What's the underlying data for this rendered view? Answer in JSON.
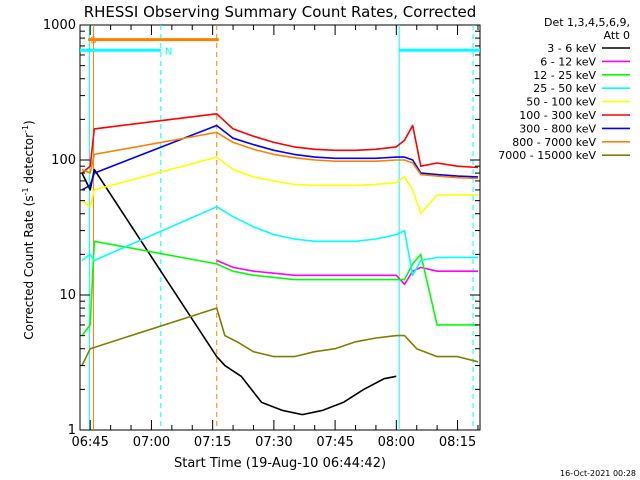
{
  "chart_data": {
    "type": "line",
    "title": "RHESSI Observing Summary Count Rates, Corrected",
    "xlabel": "Start Time (19-Aug-10 06:44:42)",
    "ylabel_main": "Corrected Count Rate (s",
    "ylabel_sup1": "-1",
    "ylabel_mid": " detector",
    "ylabel_sup2": "-1",
    "ylabel_end": ")",
    "yscale": "log",
    "ylim": [
      1,
      1000
    ],
    "xlim_minutes": [
      -2.5,
      95.5
    ],
    "x_tick_labels": [
      "06:45",
      "07:00",
      "07:15",
      "07:30",
      "07:45",
      "08:00",
      "08:15"
    ],
    "x_tick_minutes": [
      0,
      15,
      30,
      45,
      60,
      75,
      90
    ],
    "y_tick_labels": [
      "1",
      "10",
      "100",
      "1000"
    ],
    "y_tick_values": [
      1,
      10,
      100,
      1000
    ],
    "legend_position": "right",
    "legend_header": [
      "Det 1,3,4,5,6,9,",
      "Att 0"
    ],
    "series": [
      {
        "name": "3 - 6 keV",
        "color": "#000000",
        "x": [
          -2,
          0,
          1,
          31,
          33,
          37,
          42,
          47,
          52,
          57,
          62,
          67,
          72,
          75
        ],
        "y": [
          80,
          60,
          85,
          3.5,
          3.0,
          2.5,
          1.6,
          1.4,
          1.3,
          1.4,
          1.6,
          2.0,
          2.4,
          2.5
        ]
      },
      {
        "name": "6 - 12 keV",
        "color": "#ff00ff",
        "x": [
          31,
          35,
          40,
          45,
          50,
          55,
          60,
          65,
          70,
          75,
          77,
          79,
          81,
          85,
          90,
          95
        ],
        "y": [
          18,
          16,
          15,
          14.5,
          14,
          14,
          14,
          14,
          14,
          14,
          12,
          15,
          16,
          15,
          15,
          15
        ]
      },
      {
        "name": "12 - 25 keV",
        "color": "#00ff00",
        "x": [
          -2,
          0,
          1,
          31,
          35,
          40,
          45,
          50,
          55,
          60,
          65,
          70,
          75,
          77,
          79,
          81,
          85,
          90,
          95
        ],
        "y": [
          5,
          6,
          25,
          17,
          15,
          14,
          13.5,
          13,
          13,
          13,
          13,
          13,
          13,
          13,
          17,
          20,
          6,
          6,
          6
        ]
      },
      {
        "name": "25 - 50 keV",
        "color": "#00ffff",
        "x": [
          -2,
          0,
          1,
          31,
          35,
          40,
          45,
          50,
          55,
          60,
          65,
          70,
          75,
          77,
          79,
          81,
          85,
          90,
          95
        ],
        "y": [
          18,
          20,
          18,
          45,
          38,
          32,
          28,
          26,
          25,
          25,
          25,
          26,
          28,
          30,
          14,
          18,
          19,
          19,
          19
        ]
      },
      {
        "name": "50 - 100 keV",
        "color": "#ffff00",
        "x": [
          -2,
          0,
          1,
          31,
          35,
          40,
          45,
          50,
          55,
          60,
          65,
          70,
          75,
          77,
          79,
          81,
          85,
          90,
          95
        ],
        "y": [
          50,
          45,
          60,
          105,
          85,
          75,
          70,
          66,
          65,
          65,
          65,
          66,
          68,
          75,
          60,
          40,
          55,
          55,
          55
        ]
      },
      {
        "name": "100 - 300 keV",
        "color": "#ff0000",
        "x": [
          -2,
          0,
          1,
          31,
          35,
          40,
          45,
          50,
          55,
          60,
          65,
          70,
          75,
          77,
          79,
          81,
          85,
          90,
          95
        ],
        "y": [
          80,
          90,
          170,
          220,
          170,
          150,
          135,
          125,
          120,
          118,
          118,
          120,
          125,
          140,
          180,
          90,
          95,
          90,
          88
        ]
      },
      {
        "name": "300 - 800 keV",
        "color": "#0000ff",
        "x": [
          -2,
          0,
          1,
          31,
          35,
          40,
          45,
          50,
          55,
          60,
          65,
          70,
          75,
          77,
          79,
          81,
          85,
          90,
          95
        ],
        "y": [
          60,
          65,
          80,
          180,
          145,
          130,
          118,
          110,
          105,
          103,
          103,
          103,
          105,
          105,
          100,
          80,
          78,
          76,
          75
        ]
      },
      {
        "name": "800 - 7000 keV",
        "color": "#ff8000",
        "x": [
          -2,
          0,
          1,
          31,
          35,
          40,
          45,
          50,
          55,
          60,
          65,
          70,
          75,
          77,
          79,
          81,
          85,
          90,
          95
        ],
        "y": [
          85,
          80,
          110,
          160,
          135,
          120,
          110,
          104,
          100,
          98,
          98,
          98,
          100,
          100,
          95,
          78,
          76,
          74,
          73
        ]
      },
      {
        "name": "7000 - 15000 keV",
        "color": "#808000",
        "x": [
          -2,
          0,
          31,
          33,
          36,
          40,
          45,
          50,
          55,
          60,
          65,
          70,
          75,
          77,
          80,
          85,
          90,
          95
        ],
        "y": [
          3,
          4,
          8,
          5,
          4.5,
          3.8,
          3.5,
          3.5,
          3.8,
          4.0,
          4.5,
          4.8,
          5.0,
          5.0,
          4.0,
          3.5,
          3.5,
          3.2
        ]
      }
    ],
    "annotations": [
      {
        "label": "S",
        "color": "#ff8000",
        "x_start": -0.5,
        "x_end": 31.5,
        "level": 780
      },
      {
        "label": "N",
        "color": "#00ffff",
        "x_start": -2.5,
        "x_end": 17.3,
        "level": 650
      },
      {
        "label": "",
        "color": "#00ffff",
        "x_start": 75.7,
        "x_end": 95.5,
        "level": 650
      }
    ],
    "vertical_markers": [
      {
        "color": "#00ffff",
        "minute": -0.2,
        "style": "solid"
      },
      {
        "color": "#ff8000",
        "minute": 0.8,
        "style": "solid"
      },
      {
        "color": "#00ffff",
        "minute": 17.3,
        "style": "dashed"
      },
      {
        "color": "#ff8000",
        "minute": 31.0,
        "style": "dashed"
      },
      {
        "color": "#00ffff",
        "minute": 75.7,
        "style": "solid"
      },
      {
        "color": "#00ffff",
        "minute": 93.8,
        "style": "dashed"
      }
    ]
  },
  "footer": {
    "timestamp": "16-Oct-2021 00:28"
  }
}
